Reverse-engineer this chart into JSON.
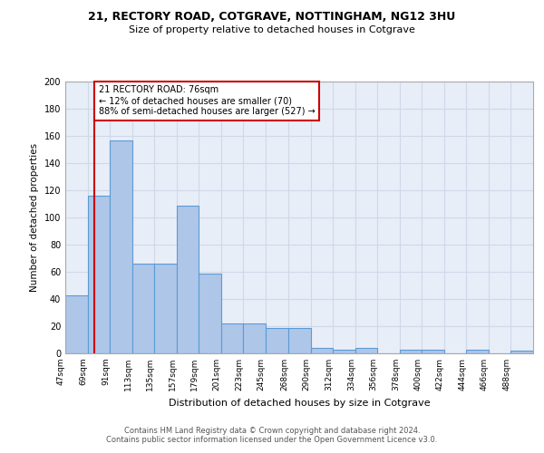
{
  "title1": "21, RECTORY ROAD, COTGRAVE, NOTTINGHAM, NG12 3HU",
  "title2": "Size of property relative to detached houses in Cotgrave",
  "xlabel": "Distribution of detached houses by size in Cotgrave",
  "ylabel": "Number of detached properties",
  "bar_values": [
    43,
    116,
    157,
    66,
    66,
    109,
    59,
    22,
    22,
    19,
    19,
    4,
    3,
    4,
    0,
    3,
    3,
    0,
    3,
    0,
    2
  ],
  "bin_edges": [
    47,
    69,
    91,
    113,
    135,
    157,
    179,
    201,
    223,
    245,
    268,
    290,
    312,
    334,
    356,
    378,
    400,
    422,
    444,
    466,
    488,
    510
  ],
  "tick_labels": [
    "47sqm",
    "69sqm",
    "91sqm",
    "113sqm",
    "135sqm",
    "157sqm",
    "179sqm",
    "201sqm",
    "223sqm",
    "245sqm",
    "268sqm",
    "290sqm",
    "312sqm",
    "334sqm",
    "356sqm",
    "378sqm",
    "400sqm",
    "422sqm",
    "444sqm",
    "466sqm",
    "488sqm"
  ],
  "bar_color": "#aec6e8",
  "bar_edge_color": "#5b9bd5",
  "grid_color": "#d0d8e8",
  "background_color": "#e8eef8",
  "vline_x": 76,
  "vline_color": "#cc0000",
  "annotation_text": "21 RECTORY ROAD: 76sqm\n← 12% of detached houses are smaller (70)\n88% of semi-detached houses are larger (527) →",
  "annotation_box_color": "#ffffff",
  "annotation_box_edge": "#cc0000",
  "footer_text": "Contains HM Land Registry data © Crown copyright and database right 2024.\nContains public sector information licensed under the Open Government Licence v3.0.",
  "ylim": [
    0,
    200
  ],
  "yticks": [
    0,
    20,
    40,
    60,
    80,
    100,
    120,
    140,
    160,
    180,
    200
  ]
}
